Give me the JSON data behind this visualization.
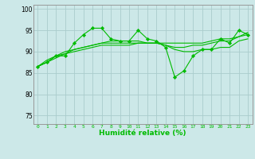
{
  "background_color": "#cce8e8",
  "grid_color": "#aacccc",
  "line_color": "#00bb00",
  "xlabel": "Humidité relative (%)",
  "xlabel_color": "#00bb00",
  "ylim": [
    73,
    101
  ],
  "xlim": [
    -0.5,
    23.5
  ],
  "yticks": [
    75,
    80,
    85,
    90,
    95,
    100
  ],
  "xtick_labels": [
    "0",
    "1",
    "2",
    "3",
    "4",
    "5",
    "6",
    "7",
    "8",
    "9",
    "10",
    "11",
    "12",
    "13",
    "14",
    "15",
    "16",
    "17",
    "18",
    "19",
    "20",
    "21",
    "22",
    "23"
  ],
  "series": [
    [
      86.5,
      87.5,
      89.0,
      89.0,
      92.0,
      94.0,
      95.5,
      95.5,
      93.0,
      92.5,
      92.5,
      95.0,
      93.0,
      92.5,
      91.0,
      84.0,
      85.5,
      89.0,
      90.5,
      90.5,
      93.0,
      92.0,
      95.0,
      94.0
    ],
    [
      86.5,
      88.0,
      89.0,
      89.5,
      90.0,
      90.5,
      91.0,
      91.5,
      91.5,
      91.5,
      91.5,
      92.0,
      92.0,
      92.0,
      92.0,
      92.0,
      92.0,
      92.0,
      92.0,
      92.5,
      93.0,
      93.0,
      93.5,
      94.0
    ],
    [
      86.5,
      87.5,
      88.5,
      89.5,
      90.5,
      91.0,
      91.5,
      92.0,
      92.0,
      92.0,
      92.0,
      92.0,
      92.0,
      92.0,
      91.5,
      91.0,
      91.0,
      91.5,
      91.5,
      92.0,
      92.5,
      92.5,
      93.5,
      94.5
    ],
    [
      86.5,
      87.5,
      89.0,
      90.0,
      90.5,
      91.0,
      91.5,
      92.0,
      92.5,
      92.5,
      92.5,
      92.5,
      92.0,
      92.0,
      91.5,
      90.5,
      90.0,
      90.0,
      90.5,
      90.5,
      91.0,
      91.0,
      92.5,
      93.0
    ]
  ],
  "marker_series_idx": 0,
  "marker": "D",
  "marker_size": 2.2,
  "linewidth": 0.8
}
